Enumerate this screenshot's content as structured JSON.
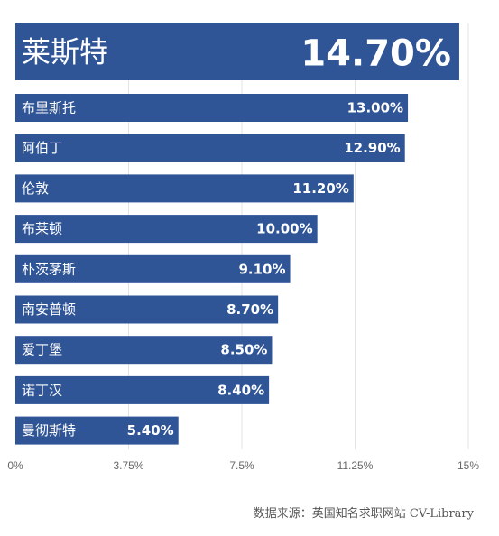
{
  "chart_data": {
    "type": "bar",
    "orientation": "horizontal",
    "categories": [
      "莱斯特",
      "布里斯托",
      "阿伯丁",
      "伦敦",
      "布莱顿",
      "朴茨茅斯",
      "南安普顿",
      "爱丁堡",
      "诺丁汉",
      "曼彻斯特"
    ],
    "values": [
      14.7,
      13.0,
      12.9,
      11.2,
      10.0,
      9.1,
      8.7,
      8.5,
      8.4,
      5.4
    ],
    "value_labels": [
      "14.70%",
      "13.00%",
      "12.90%",
      "11.20%",
      "10.00%",
      "9.10%",
      "8.70%",
      "8.50%",
      "8.40%",
      "5.40%"
    ],
    "xlim": [
      0,
      15
    ],
    "x_ticks": [
      0,
      3.75,
      7.5,
      11.25,
      15
    ],
    "x_tick_labels": [
      "0%",
      "3.75%",
      "7.5%",
      "11.25%",
      "15%"
    ],
    "grid": true,
    "bar_color": "#2f5597",
    "source": "数据来源：英国知名求职网站 CV-Library"
  }
}
